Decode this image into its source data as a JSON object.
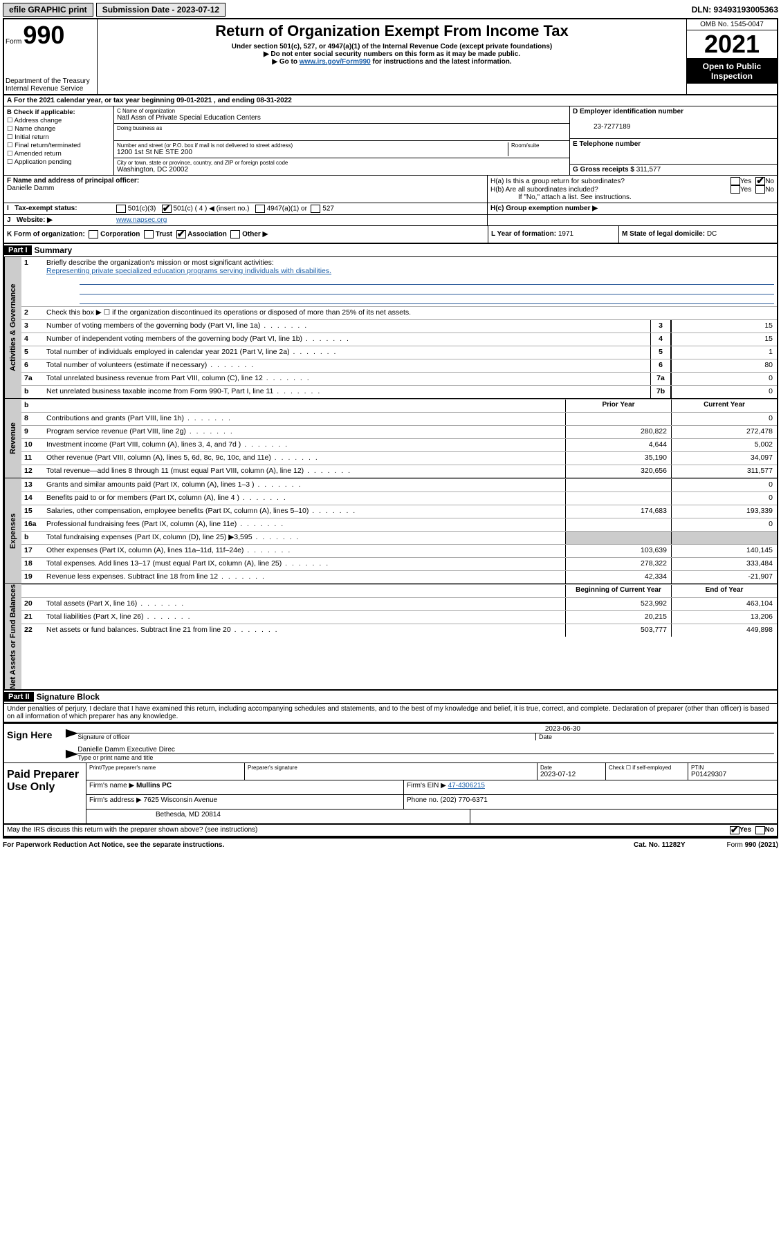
{
  "topBar": {
    "efile": "efile GRAPHIC print",
    "submissionLabel": "Submission Date - 2023-07-12",
    "dln": "DLN: 93493193005363"
  },
  "header": {
    "formLabel": "Form",
    "formNum": "990",
    "title": "Return of Organization Exempt From Income Tax",
    "sub1": "Under section 501(c), 527, or 4947(a)(1) of the Internal Revenue Code (except private foundations)",
    "sub2": "Do not enter social security numbers on this form as it may be made public.",
    "sub3a": "Go to ",
    "sub3link": "www.irs.gov/Form990",
    "sub3b": " for instructions and the latest information.",
    "dept": "Department of the Treasury\nInternal Revenue Service",
    "omb": "OMB No. 1545-0047",
    "year": "2021",
    "open": "Open to Public Inspection"
  },
  "rowA": "For the 2021 calendar year, or tax year beginning 09-01-2021  , and ending 08-31-2022",
  "secB": {
    "label": "B Check if applicable:",
    "items": [
      "Address change",
      "Name change",
      "Initial return",
      "Final return/terminated",
      "Amended return",
      "Application pending"
    ]
  },
  "secC": {
    "nameLabel": "C Name of organization",
    "name": "Natl Assn of Private Special Education Centers",
    "dba": "Doing business as",
    "addrLabel": "Number and street (or P.O. box if mail is not delivered to street address)",
    "roomLabel": "Room/suite",
    "addr": "1200 1st St NE STE 200",
    "cityLabel": "City or town, state or province, country, and ZIP or foreign postal code",
    "city": "Washington, DC  20002"
  },
  "secD": {
    "label": "D Employer identification number",
    "value": "23-7277189"
  },
  "secE": {
    "label": "E Telephone number"
  },
  "secG": {
    "label": "G Gross receipts $",
    "value": "311,577"
  },
  "secF": {
    "label": "F Name and address of principal officer:",
    "value": "Danielle Damm"
  },
  "secH": {
    "a": "H(a)  Is this a group return for subordinates?",
    "b": "H(b)  Are all subordinates included?",
    "bnote": "If \"No,\" attach a list. See instructions.",
    "c": "H(c)  Group exemption number ▶",
    "yes": "Yes",
    "no": "No"
  },
  "secI": {
    "label": "Tax-exempt status:",
    "opts": [
      "501(c)(3)",
      "501(c) ( 4 ) ◀ (insert no.)",
      "4947(a)(1) or",
      "527"
    ]
  },
  "secJ": {
    "label": "Website: ▶",
    "value": "www.napsec.org"
  },
  "secK": {
    "label": "K Form of organization:",
    "opts": [
      "Corporation",
      "Trust",
      "Association",
      "Other ▶"
    ]
  },
  "secL": {
    "label": "L Year of formation:",
    "value": "1971"
  },
  "secM": {
    "label": "M State of legal domicile:",
    "value": "DC"
  },
  "partI": {
    "hdr": "Part I",
    "title": "Summary",
    "line1": "Briefly describe the organization's mission or most significant activities:",
    "mission": "Representing private specialized education programs serving individuals with disabilities.",
    "line2": "Check this box ▶ ☐  if the organization discontinued its operations or disposed of more than 25% of its net assets."
  },
  "govLabel": "Activities & Governance",
  "revLabel": "Revenue",
  "expLabel": "Expenses",
  "nabLabel": "Net Assets or Fund Balances",
  "govRows": [
    {
      "n": "3",
      "d": "Number of voting members of the governing body (Part VI, line 1a)",
      "r": "3",
      "v": "15"
    },
    {
      "n": "4",
      "d": "Number of independent voting members of the governing body (Part VI, line 1b)",
      "r": "4",
      "v": "15"
    },
    {
      "n": "5",
      "d": "Total number of individuals employed in calendar year 2021 (Part V, line 2a)",
      "r": "5",
      "v": "1"
    },
    {
      "n": "6",
      "d": "Total number of volunteers (estimate if necessary)",
      "r": "6",
      "v": "80"
    },
    {
      "n": "7a",
      "d": "Total unrelated business revenue from Part VIII, column (C), line 12",
      "r": "7a",
      "v": "0"
    },
    {
      "n": "b",
      "d": "Net unrelated business taxable income from Form 990-T, Part I, line 11",
      "r": "7b",
      "v": "0"
    }
  ],
  "colHdr": {
    "prior": "Prior Year",
    "cur": "Current Year",
    "boy": "Beginning of Current Year",
    "eoy": "End of Year"
  },
  "revRows": [
    {
      "n": "8",
      "d": "Contributions and grants (Part VIII, line 1h)",
      "p": "",
      "c": "0"
    },
    {
      "n": "9",
      "d": "Program service revenue (Part VIII, line 2g)",
      "p": "280,822",
      "c": "272,478"
    },
    {
      "n": "10",
      "d": "Investment income (Part VIII, column (A), lines 3, 4, and 7d )",
      "p": "4,644",
      "c": "5,002"
    },
    {
      "n": "11",
      "d": "Other revenue (Part VIII, column (A), lines 5, 6d, 8c, 9c, 10c, and 11e)",
      "p": "35,190",
      "c": "34,097"
    },
    {
      "n": "12",
      "d": "Total revenue—add lines 8 through 11 (must equal Part VIII, column (A), line 12)",
      "p": "320,656",
      "c": "311,577"
    }
  ],
  "expRows": [
    {
      "n": "13",
      "d": "Grants and similar amounts paid (Part IX, column (A), lines 1–3 )",
      "p": "",
      "c": "0"
    },
    {
      "n": "14",
      "d": "Benefits paid to or for members (Part IX, column (A), line 4 )",
      "p": "",
      "c": "0"
    },
    {
      "n": "15",
      "d": "Salaries, other compensation, employee benefits (Part IX, column (A), lines 5–10)",
      "p": "174,683",
      "c": "193,339"
    },
    {
      "n": "16a",
      "d": "Professional fundraising fees (Part IX, column (A), line 11e)",
      "p": "",
      "c": "0"
    },
    {
      "n": "b",
      "d": "Total fundraising expenses (Part IX, column (D), line 25) ▶3,595",
      "p": "gray",
      "c": "gray"
    },
    {
      "n": "17",
      "d": "Other expenses (Part IX, column (A), lines 11a–11d, 11f–24e)",
      "p": "103,639",
      "c": "140,145"
    },
    {
      "n": "18",
      "d": "Total expenses. Add lines 13–17 (must equal Part IX, column (A), line 25)",
      "p": "278,322",
      "c": "333,484"
    },
    {
      "n": "19",
      "d": "Revenue less expenses. Subtract line 18 from line 12",
      "p": "42,334",
      "c": "-21,907"
    }
  ],
  "nabRows": [
    {
      "n": "20",
      "d": "Total assets (Part X, line 16)",
      "p": "523,992",
      "c": "463,104"
    },
    {
      "n": "21",
      "d": "Total liabilities (Part X, line 26)",
      "p": "20,215",
      "c": "13,206"
    },
    {
      "n": "22",
      "d": "Net assets or fund balances. Subtract line 21 from line 20",
      "p": "503,777",
      "c": "449,898"
    }
  ],
  "partII": {
    "hdr": "Part II",
    "title": "Signature Block",
    "decl": "Under penalties of perjury, I declare that I have examined this return, including accompanying schedules and statements, and to the best of my knowledge and belief, it is true, correct, and complete. Declaration of preparer (other than officer) is based on all information of which preparer has any knowledge."
  },
  "sign": {
    "here": "Sign Here",
    "sigLabel": "Signature of officer",
    "dateLabel": "Date",
    "date": "2023-06-30",
    "name": "Danielle Damm  Executive Direc",
    "typeLabel": "Type or print name and title"
  },
  "prep": {
    "label": "Paid Preparer Use Only",
    "h1": "Print/Type preparer's name",
    "h2": "Preparer's signature",
    "h3": "Date",
    "date": "2023-07-12",
    "h4": "Check ☐ if self-employed",
    "h5": "PTIN",
    "ptin": "P01429307",
    "firmLabel": "Firm's name   ▶",
    "firm": "Mullins PC",
    "einLabel": "Firm's EIN ▶",
    "ein": "47-4306215",
    "addrLabel": "Firm's address ▶",
    "addr1": "7625 Wisconsin Avenue",
    "addr2": "Bethesda, MD  20814",
    "phoneLabel": "Phone no.",
    "phone": "(202) 770-6371"
  },
  "discuss": "May the IRS discuss this return with the preparer shown above? (see instructions)",
  "footer": {
    "pra": "For Paperwork Reduction Act Notice, see the separate instructions.",
    "cat": "Cat. No. 11282Y",
    "form": "Form 990 (2021)"
  }
}
